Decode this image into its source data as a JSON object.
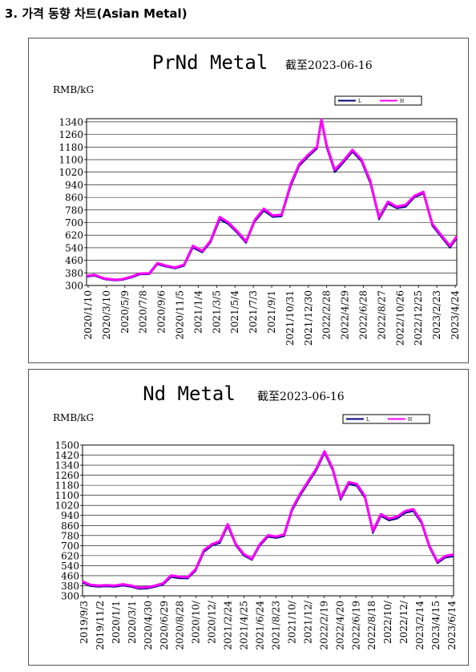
{
  "heading": "3. 가격 동향 차트(Asian Metal)",
  "chart_data": [
    {
      "type": "line",
      "title": "PrNd Metal",
      "subtitle": "截至2023-06-16",
      "ylabel": "RMB/kG",
      "ylim": [
        300,
        1360
      ],
      "yticks": [
        300,
        380,
        460,
        540,
        620,
        700,
        780,
        860,
        940,
        1020,
        1100,
        1180,
        1260,
        1340
      ],
      "grid": true,
      "legend": {
        "placement": "top-right",
        "entries": [
          "L",
          "H"
        ]
      },
      "xticks": [
        "2020/1/10",
        "2020/3/10",
        "2020/5/9",
        "2020/7/8",
        "2020/9/6",
        "2020/11/5",
        "2021/1/4",
        "2021/3/5",
        "2021/5/4",
        "2021/7/3",
        "2021/9/1",
        "2021/10/31",
        "2021/12/30",
        "2022/2/28",
        "2022/4/29",
        "2022/6/28",
        "2022/8/27",
        "2022/10/26",
        "2022/12/25",
        "2023/2/23",
        "2023/4/24"
      ],
      "x": [
        "2020/1/10",
        "2020/2/5",
        "2020/3/10",
        "2020/4/15",
        "2020/5/9",
        "2020/6/10",
        "2020/7/8",
        "2020/8/10",
        "2020/9/6",
        "2020/10/5",
        "2020/11/5",
        "2020/12/5",
        "2021/1/4",
        "2021/2/5",
        "2021/3/5",
        "2021/4/5",
        "2021/5/4",
        "2021/6/5",
        "2021/7/3",
        "2021/8/1",
        "2021/9/1",
        "2021/10/1",
        "2021/10/31",
        "2021/12/1",
        "2021/12/30",
        "2022/1/30",
        "2022/2/28",
        "2022/3/15",
        "2022/4/1",
        "2022/4/29",
        "2022/5/28",
        "2022/6/28",
        "2022/7/28",
        "2022/8/27",
        "2022/9/26",
        "2022/10/26",
        "2022/11/25",
        "2022/12/25",
        "2023/1/24",
        "2023/2/23",
        "2023/3/25",
        "2023/4/24",
        "2023/5/24",
        "2023/6/16"
      ],
      "series": [
        {
          "name": "L",
          "color": "#000080",
          "values": [
            355,
            362,
            340,
            332,
            335,
            350,
            370,
            372,
            435,
            420,
            408,
            425,
            540,
            510,
            575,
            720,
            690,
            630,
            570,
            705,
            775,
            735,
            740,
            930,
            1060,
            1120,
            1170,
            1345,
            1180,
            1020,
            1080,
            1150,
            1090,
            950,
            720,
            820,
            790,
            800,
            860,
            885,
            680,
            610,
            540,
            600
          ]
        },
        {
          "name": "H",
          "color": "#ff00ff",
          "values": [
            360,
            368,
            345,
            336,
            340,
            356,
            376,
            378,
            442,
            426,
            414,
            432,
            552,
            518,
            585,
            735,
            700,
            640,
            580,
            715,
            788,
            745,
            750,
            945,
            1072,
            1132,
            1180,
            1355,
            1195,
            1035,
            1092,
            1162,
            1102,
            965,
            732,
            832,
            800,
            812,
            870,
            895,
            692,
            620,
            552,
            612
          ]
        }
      ]
    },
    {
      "type": "line",
      "title": "Nd Metal",
      "subtitle": "截至2023-06-16",
      "ylabel": "RMB/kG",
      "ylim": [
        300,
        1500
      ],
      "yticks": [
        300,
        380,
        460,
        540,
        620,
        700,
        780,
        860,
        940,
        1020,
        1100,
        1180,
        1260,
        1340,
        1420,
        1500
      ],
      "grid": true,
      "legend": {
        "placement": "top-right",
        "entries": [
          "L",
          "H"
        ]
      },
      "xticks": [
        "2019/9/3",
        "2019/11/2",
        "2020/1/1",
        "2020/3/1",
        "2020/4/30",
        "2020/6/29",
        "2020/8/28",
        "2020/10/",
        "2020/12/",
        "2021/2/24",
        "2021/4/25",
        "2021/6/24",
        "2021/8/23",
        "2021/10/",
        "2021/12/",
        "2022/2/19",
        "2022/4/20",
        "2022/6/19",
        "2022/8/18",
        "2022/10/",
        "2022/12/",
        "2023/2/14",
        "2023/4/15",
        "2023/6/14"
      ],
      "x": [
        "2019/9/3",
        "2019/10/1",
        "2019/11/2",
        "2019/12/1",
        "2020/1/1",
        "2020/2/1",
        "2020/3/1",
        "2020/4/1",
        "2020/4/30",
        "2020/6/1",
        "2020/6/29",
        "2020/7/28",
        "2020/8/28",
        "2020/9/28",
        "2020/10/28",
        "2020/11/28",
        "2020/12/28",
        "2021/1/26",
        "2021/2/24",
        "2021/3/26",
        "2021/4/25",
        "2021/5/25",
        "2021/6/24",
        "2021/7/24",
        "2021/8/23",
        "2021/9/22",
        "2021/10/22",
        "2021/11/21",
        "2021/12/21",
        "2022/1/20",
        "2022/2/19",
        "2022/3/21",
        "2022/4/20",
        "2022/5/20",
        "2022/6/19",
        "2022/7/19",
        "2022/8/18",
        "2022/9/17",
        "2022/10/17",
        "2022/11/16",
        "2022/12/16",
        "2023/1/15",
        "2023/2/14",
        "2023/3/15",
        "2023/4/15",
        "2023/5/15",
        "2023/6/14"
      ],
      "series": [
        {
          "name": "L",
          "color": "#000080",
          "values": [
            405,
            378,
            372,
            375,
            372,
            382,
            372,
            355,
            358,
            372,
            390,
            450,
            440,
            438,
            500,
            650,
            700,
            720,
            855,
            700,
            620,
            585,
            700,
            770,
            760,
            775,
            980,
            1100,
            1200,
            1300,
            1435,
            1300,
            1065,
            1190,
            1175,
            1080,
            800,
            935,
            900,
            915,
            960,
            975,
            880,
            690,
            560,
            605,
            615
          ]
        },
        {
          "name": "H",
          "color": "#ff00ff",
          "values": [
            415,
            388,
            382,
            385,
            382,
            392,
            382,
            365,
            368,
            382,
            400,
            462,
            452,
            448,
            512,
            665,
            712,
            735,
            870,
            712,
            632,
            595,
            712,
            782,
            772,
            788,
            995,
            1115,
            1215,
            1315,
            1450,
            1315,
            1080,
            1205,
            1190,
            1095,
            815,
            950,
            915,
            930,
            975,
            990,
            895,
            702,
            572,
            618,
            628
          ]
        }
      ]
    }
  ]
}
